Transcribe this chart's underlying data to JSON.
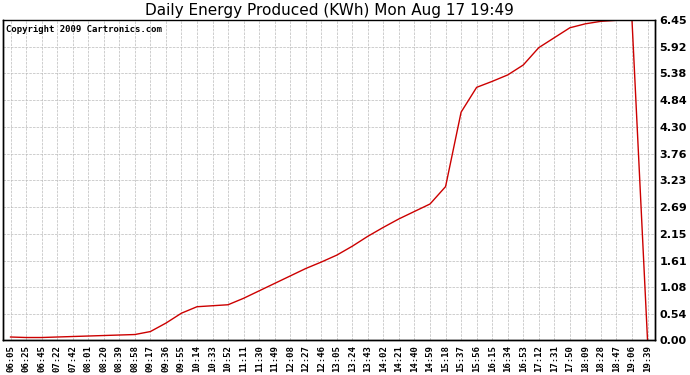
{
  "title": "Daily Energy Produced (KWh) Mon Aug 17 19:49",
  "copyright_text": "Copyright 2009 Cartronics.com",
  "line_color": "#cc0000",
  "background_color": "#ffffff",
  "plot_background": "#ffffff",
  "grid_color": "#bbbbbb",
  "yticks": [
    0.0,
    0.54,
    1.08,
    1.61,
    2.15,
    2.69,
    3.23,
    3.76,
    4.3,
    4.84,
    5.38,
    5.92,
    6.45
  ],
  "ylim": [
    0.0,
    6.45
  ],
  "xtick_labels": [
    "06:05",
    "06:25",
    "06:45",
    "07:22",
    "07:42",
    "08:01",
    "08:20",
    "08:39",
    "08:58",
    "09:17",
    "09:36",
    "09:55",
    "10:14",
    "10:33",
    "10:52",
    "11:11",
    "11:30",
    "11:49",
    "12:08",
    "12:27",
    "12:46",
    "13:05",
    "13:24",
    "13:43",
    "14:02",
    "14:21",
    "14:40",
    "14:59",
    "15:18",
    "15:37",
    "15:56",
    "16:15",
    "16:34",
    "16:53",
    "17:12",
    "17:31",
    "17:50",
    "18:09",
    "18:28",
    "18:47",
    "19:06",
    "19:39"
  ],
  "y_values": [
    0.07,
    0.06,
    0.06,
    0.07,
    0.08,
    0.09,
    0.1,
    0.11,
    0.12,
    0.18,
    0.35,
    0.55,
    0.68,
    0.7,
    0.72,
    0.85,
    1.0,
    1.15,
    1.3,
    1.45,
    1.58,
    1.72,
    1.9,
    2.1,
    2.28,
    2.45,
    2.6,
    2.75,
    3.1,
    4.6,
    5.1,
    5.22,
    5.35,
    5.55,
    5.9,
    6.1,
    6.3,
    6.38,
    6.43,
    6.45,
    6.45,
    0.0
  ],
  "title_fontsize": 11,
  "tick_fontsize": 6.5,
  "copyright_fontsize": 6.5,
  "ytick_fontsize": 8,
  "figwidth": 6.9,
  "figheight": 3.75,
  "dpi": 100
}
